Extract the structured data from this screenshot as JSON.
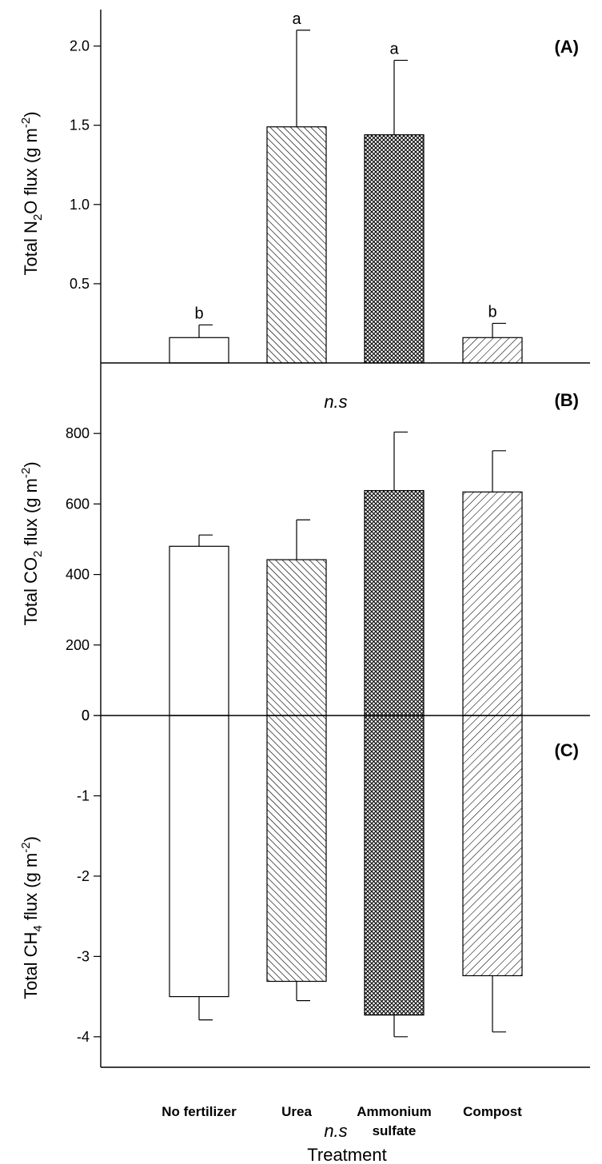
{
  "chart_data": [
    {
      "panel_label": "(A)",
      "type": "bar",
      "ylabel": {
        "prefix": "Total N",
        "sub": "2",
        "mid": "O flux (g m",
        "sup": "-2",
        "suffix": ")"
      },
      "categories": [
        "No fertilizer",
        "Urea",
        "Ammonium sulfate",
        "Compost"
      ],
      "values": [
        0.16,
        1.49,
        1.44,
        0.16
      ],
      "errors": [
        0.08,
        0.61,
        0.47,
        0.09
      ],
      "significance": [
        "b",
        "a",
        "a",
        "b"
      ],
      "yticks": [
        "0.5",
        "1.0",
        "1.5",
        "2.0"
      ],
      "ylim": [
        0,
        2.23
      ]
    },
    {
      "panel_label": "(B)",
      "type": "bar",
      "ylabel": {
        "prefix": "Total CO",
        "sub": "2",
        "mid": " flux (g m",
        "sup": "-2",
        "suffix": ")"
      },
      "categories": [
        "No fertilizer",
        "Urea",
        "Ammonium sulfate",
        "Compost"
      ],
      "values": [
        480,
        442,
        638,
        634
      ],
      "errors": [
        32,
        113,
        166,
        117
      ],
      "annotation": "n.s",
      "yticks": [
        "0",
        "200",
        "400",
        "600",
        "800"
      ],
      "ylim": [
        0,
        1000
      ]
    },
    {
      "panel_label": "(C)",
      "type": "bar",
      "ylabel": {
        "prefix": "Total CH",
        "sub": "4",
        "mid": " flux (g m",
        "sup": "-2",
        "suffix": ")"
      },
      "categories": [
        "No fertilizer",
        "Urea",
        "Ammonium sulfate",
        "Compost"
      ],
      "values": [
        -3.5,
        -3.31,
        -3.73,
        -3.24
      ],
      "errors": [
        0.29,
        0.24,
        0.27,
        0.7
      ],
      "annotation": "n.s",
      "yticks": [
        "-4",
        "-3",
        "-2",
        "-1",
        "0"
      ],
      "ylim": [
        -4.38,
        0
      ]
    }
  ],
  "xaxis": {
    "title": "Treatment",
    "categories": [
      [
        "No fertilizer"
      ],
      [
        "Urea"
      ],
      [
        "Ammonium",
        "sulfate"
      ],
      [
        "Compost"
      ]
    ]
  },
  "colors": {
    "axis": "#000000",
    "fill": "#ffffff"
  }
}
